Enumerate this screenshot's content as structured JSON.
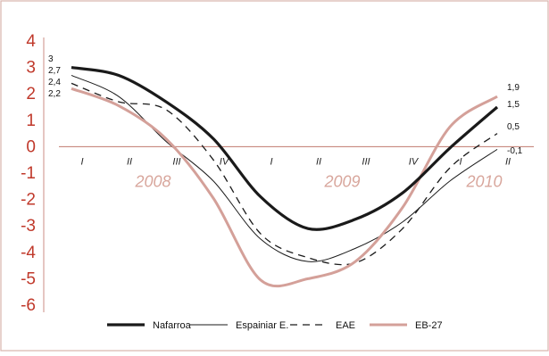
{
  "chart_data": {
    "type": "line",
    "title": "",
    "xlabel": "",
    "ylabel": "",
    "ylim": [
      -6,
      4
    ],
    "yticks": [
      "4",
      "3",
      "2",
      "1",
      "0",
      "-1",
      "-2",
      "-3",
      "-4",
      "-5",
      "-6"
    ],
    "categories": [
      "I",
      "II",
      "III",
      "IV",
      "I",
      "II",
      "III",
      "IV",
      "I",
      "II"
    ],
    "years": [
      "2008",
      "2009",
      "2010"
    ],
    "series": [
      {
        "name": "Nafarroa",
        "color": "#1a1a1a",
        "dash": "",
        "width": 3.2,
        "values": [
          3.0,
          2.7,
          1.7,
          0.3,
          -1.9,
          -3.1,
          -2.75,
          -1.75,
          -0.05,
          1.5
        ]
      },
      {
        "name": "Espainiar E.",
        "color": "#1a1a1a",
        "dash": "",
        "width": 1,
        "values": [
          2.7,
          1.9,
          0.2,
          -1.3,
          -3.5,
          -4.35,
          -3.85,
          -2.85,
          -1.3,
          -0.1
        ]
      },
      {
        "name": "EAE",
        "color": "#1a1a1a",
        "dash": "8,6",
        "width": 1.3,
        "values": [
          2.4,
          1.7,
          1.4,
          -0.5,
          -3.3,
          -4.2,
          -4.4,
          -3.1,
          -0.8,
          0.5
        ]
      },
      {
        "name": "EB-27",
        "color": "#d4a099",
        "dash": "",
        "width": 3,
        "values": [
          2.2,
          1.55,
          0.3,
          -1.95,
          -5.05,
          -5.0,
          -4.35,
          -2.3,
          0.75,
          1.9
        ]
      }
    ],
    "start_labels": [
      "3",
      "2,7",
      "2,4",
      "2,2"
    ],
    "end_labels": [
      "1,9",
      "1,5",
      "0,5",
      "-0,1"
    ],
    "legend_position": "bottom"
  }
}
